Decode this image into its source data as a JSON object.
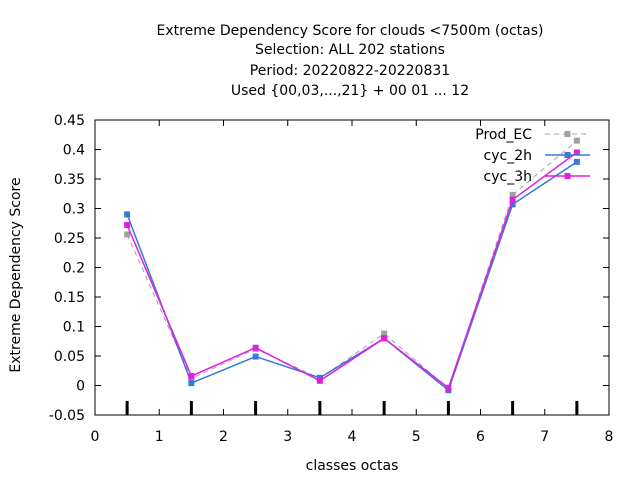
{
  "chart_data": {
    "type": "line",
    "title_lines": [
      "Extreme Dependency Score  for clouds <7500m (octas)",
      "Selection: ALL    202 stations",
      "Period: 20220822-20220831",
      "Used {00,03,...,21} + 00 01 ... 12"
    ],
    "xlabel": "classes octas",
    "ylabel": "Extreme Dependency Score",
    "xlim": [
      0,
      8
    ],
    "ylim": [
      -0.05,
      0.45
    ],
    "x_ticks": [
      "0",
      "1",
      "2",
      "3",
      "4",
      "5",
      "6",
      "7",
      "8"
    ],
    "y_ticks": [
      "-0.05",
      "0",
      "0.05",
      "0.1",
      "0.15",
      "0.2",
      "0.25",
      "0.3",
      "0.35",
      "0.4",
      "0.45"
    ],
    "x": [
      0.5,
      1.5,
      2.5,
      3.5,
      4.5,
      5.5,
      6.5,
      7.5
    ],
    "series": [
      {
        "name": "Prod_EC",
        "color": "#a0a0a0",
        "dashed": true,
        "marker": "square",
        "values": [
          0.256,
          0.012,
          0.062,
          0.012,
          0.088,
          -0.005,
          0.323,
          0.415
        ]
      },
      {
        "name": "cyc_2h",
        "color": "#3a78d6",
        "dashed": false,
        "marker": "square",
        "values": [
          0.29,
          0.004,
          0.049,
          0.013,
          0.08,
          -0.008,
          0.307,
          0.379
        ]
      },
      {
        "name": "cyc_3h",
        "color": "#e020e0",
        "dashed": false,
        "marker": "square",
        "values": [
          0.272,
          0.016,
          0.064,
          0.008,
          0.08,
          -0.004,
          0.315,
          0.395
        ]
      }
    ],
    "grid": false,
    "legend_position": "top-right"
  }
}
